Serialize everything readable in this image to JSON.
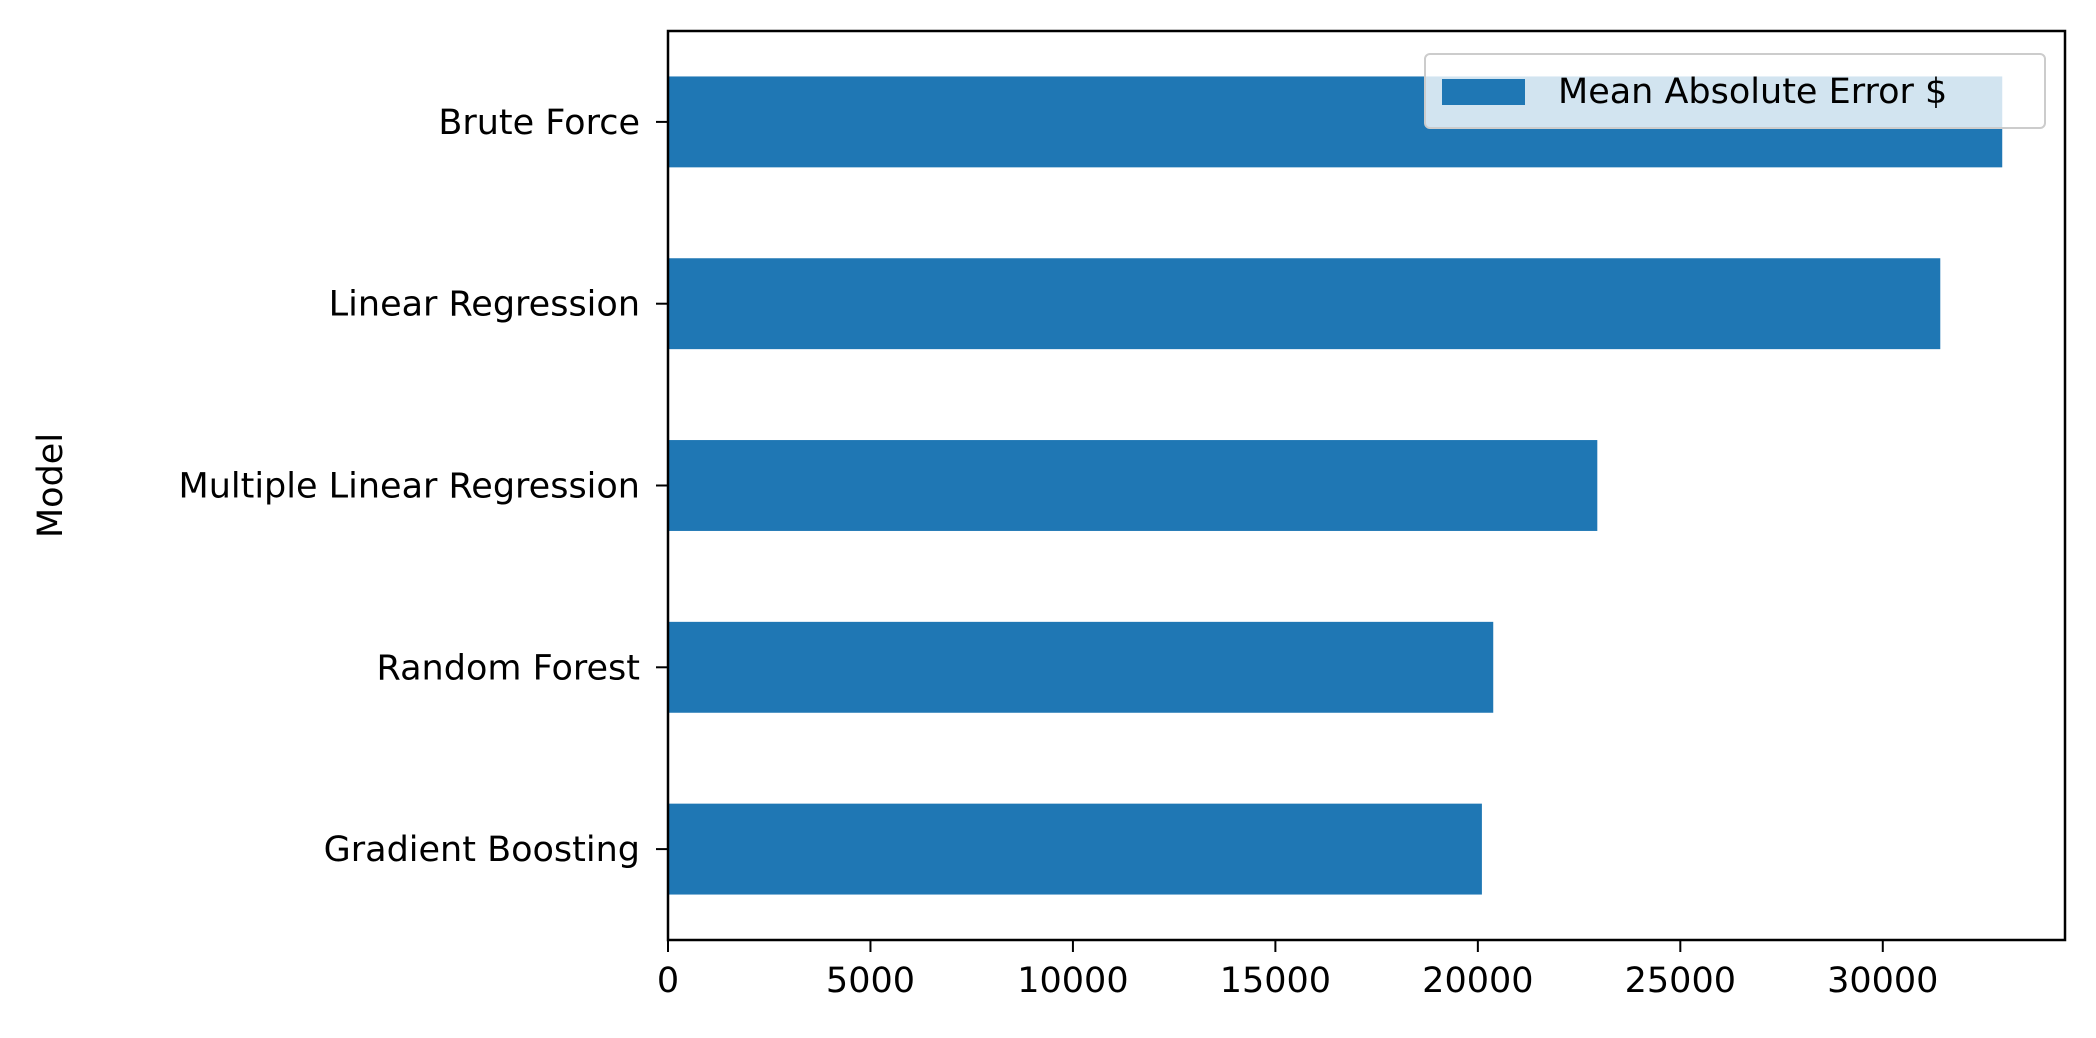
{
  "chart_data": {
    "type": "bar",
    "orientation": "horizontal",
    "title": "",
    "xlabel": "",
    "ylabel": "Model",
    "categories": [
      "Brute Force",
      "Linear Regression",
      "Multiple Linear Regression",
      "Random Forest",
      "Gradient Boosting"
    ],
    "series": [
      {
        "name": "Mean Absolute Error $",
        "values": [
          32950,
          31420,
          22950,
          20380,
          20100
        ],
        "color": "#1f77b4"
      }
    ],
    "xlim": [
      0,
      34500
    ],
    "xticks": [
      "0",
      "5000",
      "10000",
      "15000",
      "20000",
      "25000",
      "30000"
    ],
    "grid": false,
    "legend_position": "top-right"
  }
}
